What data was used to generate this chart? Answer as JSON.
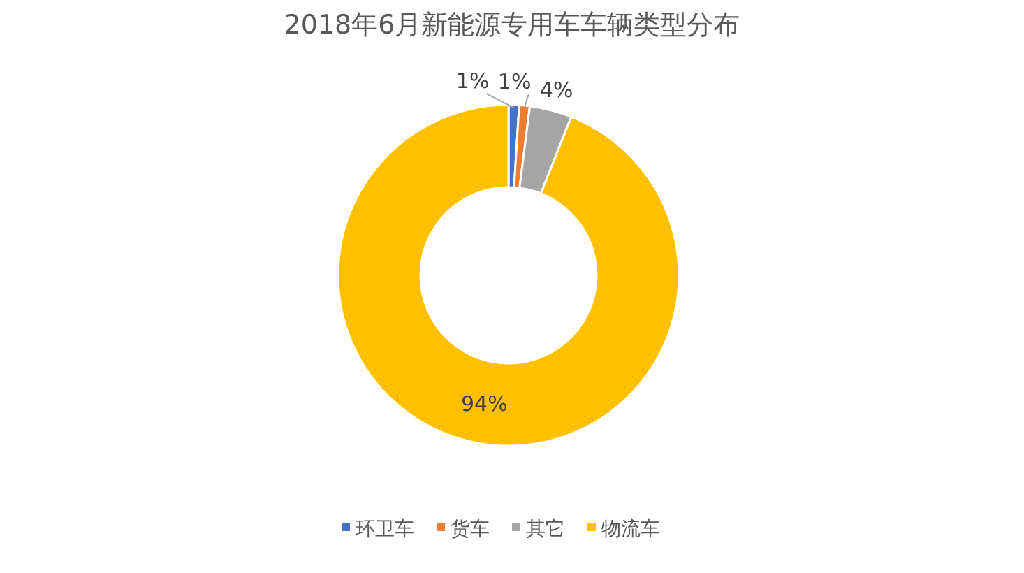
{
  "chart_data": {
    "type": "donut",
    "title": "2018年6月新能源专用车车辆类型分布",
    "categories": [
      "环卫车",
      "货车",
      "其它",
      "物流车"
    ],
    "values": [
      1,
      1,
      4,
      94
    ],
    "colors": [
      "#4472c4",
      "#ed7d31",
      "#a5a5a5",
      "#ffc000"
    ],
    "value_labels": [
      "1%",
      "1%",
      "4%",
      "94%"
    ],
    "legend": "bottom"
  }
}
